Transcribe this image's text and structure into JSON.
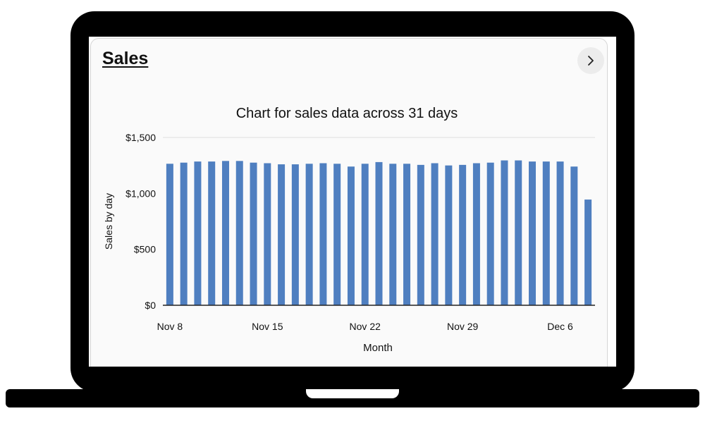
{
  "card": {
    "title": "Sales"
  },
  "colors": {
    "bar": "#4f7fc0",
    "axis": "#222222",
    "grid": "#dddddd",
    "frame": "#000000"
  },
  "chart_data": {
    "type": "bar",
    "title": "Chart for sales data across 31 days",
    "xlabel": "Month",
    "ylabel": "Sales by day",
    "ylim": [
      0,
      1500
    ],
    "y_ticks": [
      0,
      500,
      1000,
      1500
    ],
    "y_tick_labels": [
      "$0",
      "$500",
      "$1,000",
      "$1,500"
    ],
    "categories": [
      "Nov 8",
      "Nov 9",
      "Nov 10",
      "Nov 11",
      "Nov 12",
      "Nov 13",
      "Nov 14",
      "Nov 15",
      "Nov 16",
      "Nov 17",
      "Nov 18",
      "Nov 19",
      "Nov 20",
      "Nov 21",
      "Nov 22",
      "Nov 23",
      "Nov 24",
      "Nov 25",
      "Nov 26",
      "Nov 27",
      "Nov 28",
      "Nov 29",
      "Nov 30",
      "Dec 1",
      "Dec 2",
      "Dec 3",
      "Dec 4",
      "Dec 5",
      "Dec 6",
      "Dec 7",
      "Dec 8"
    ],
    "values": [
      1265,
      1275,
      1285,
      1285,
      1290,
      1290,
      1275,
      1270,
      1260,
      1260,
      1265,
      1270,
      1265,
      1240,
      1265,
      1280,
      1265,
      1265,
      1255,
      1270,
      1250,
      1255,
      1270,
      1275,
      1295,
      1295,
      1285,
      1285,
      1285,
      1240,
      945
    ],
    "x_tick_labels": [
      "Nov 8",
      "Nov 15",
      "Nov 22",
      "Nov 29",
      "Dec 6"
    ],
    "grid": true
  }
}
